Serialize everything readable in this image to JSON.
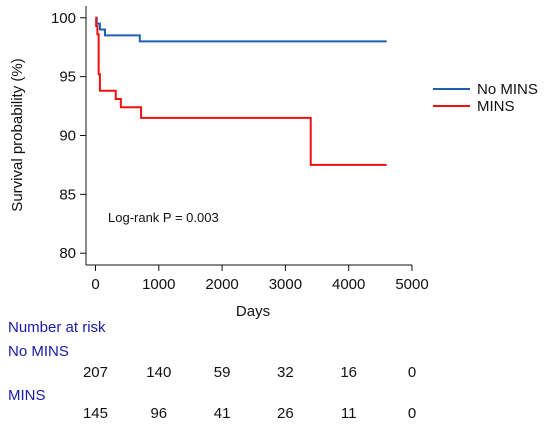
{
  "chart_data": {
    "type": "line",
    "title": "",
    "xlabel": "Days",
    "ylabel": "Survival probability (%)",
    "xlim": [
      -150,
      5000
    ],
    "ylim": [
      79,
      101
    ],
    "xticks": [
      "0",
      "1000",
      "2000",
      "3000",
      "4000",
      "5000"
    ],
    "yticks": [
      "80",
      "85",
      "90",
      "95",
      "100"
    ],
    "annotation": "Log-rank P = 0.003",
    "legend_position": "right",
    "series": [
      {
        "name": "No MINS",
        "color": "#1f5fb0",
        "points": [
          [
            0,
            100
          ],
          [
            20,
            100
          ],
          [
            20,
            99.5
          ],
          [
            70,
            99.5
          ],
          [
            70,
            99.0
          ],
          [
            150,
            99.0
          ],
          [
            150,
            98.5
          ],
          [
            700,
            98.5
          ],
          [
            700,
            98.0
          ],
          [
            4600,
            98.0
          ]
        ]
      },
      {
        "name": "MINS",
        "color": "#ee1111",
        "points": [
          [
            0,
            100
          ],
          [
            10,
            100
          ],
          [
            10,
            99.3
          ],
          [
            30,
            99.3
          ],
          [
            30,
            98.6
          ],
          [
            50,
            98.6
          ],
          [
            50,
            95.2
          ],
          [
            70,
            95.2
          ],
          [
            70,
            93.8
          ],
          [
            320,
            93.8
          ],
          [
            320,
            93.1
          ],
          [
            400,
            93.1
          ],
          [
            400,
            92.4
          ],
          [
            720,
            92.4
          ],
          [
            720,
            91.5
          ],
          [
            3400,
            91.5
          ],
          [
            3400,
            87.5
          ],
          [
            4600,
            87.5
          ]
        ]
      }
    ]
  },
  "risk_table": {
    "title": "Number at risk",
    "groups": [
      {
        "name": "No MINS",
        "values": [
          "207",
          "140",
          "59",
          "32",
          "16",
          "0"
        ]
      },
      {
        "name": "MINS",
        "values": [
          "145",
          "96",
          "41",
          "26",
          "11",
          "0"
        ]
      }
    ]
  }
}
